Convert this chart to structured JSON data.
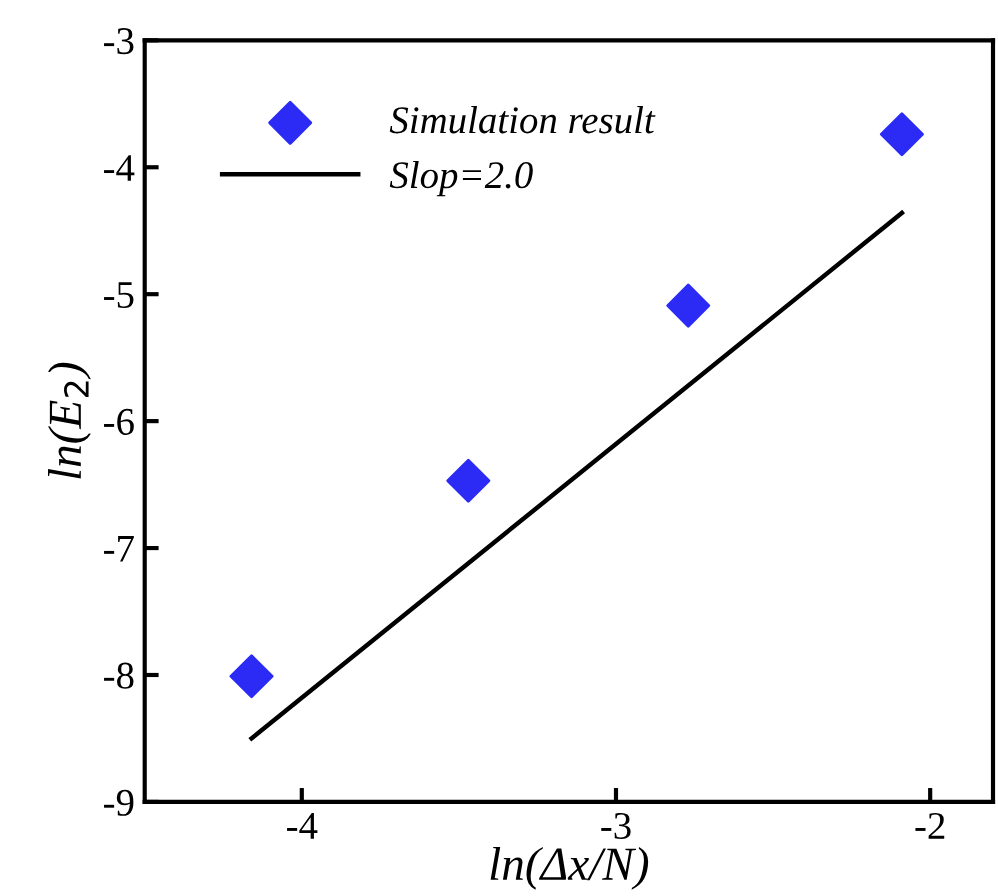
{
  "chart_data": {
    "type": "scatter",
    "xlabel": "ln(Δx/N)",
    "ylabel": "ln(E$_{2}$)",
    "xlim": [
      -4.5,
      -1.8
    ],
    "xticks": [
      -4,
      -3,
      -2
    ],
    "ylim": [
      -9,
      -3
    ],
    "yticks": [
      -9,
      -8,
      -7,
      -6,
      -5,
      -4,
      -3
    ],
    "legend": "top left",
    "grid": false,
    "series": [
      {
        "name": "Simulation result",
        "marker": "diamond",
        "color": "#2b2bf5",
        "x": [
          -4.16,
          -3.47,
          -2.77,
          -2.09
        ],
        "values": [
          -8.01,
          -6.47,
          -5.09,
          -3.74
        ]
      },
      {
        "name": "Slop=2.0",
        "type": "line",
        "marker": "none",
        "line_style": "solid",
        "color": "#000000",
        "x": [
          -4.16,
          -2.09
        ],
        "values": [
          -8.5,
          -4.36
        ]
      }
    ]
  }
}
